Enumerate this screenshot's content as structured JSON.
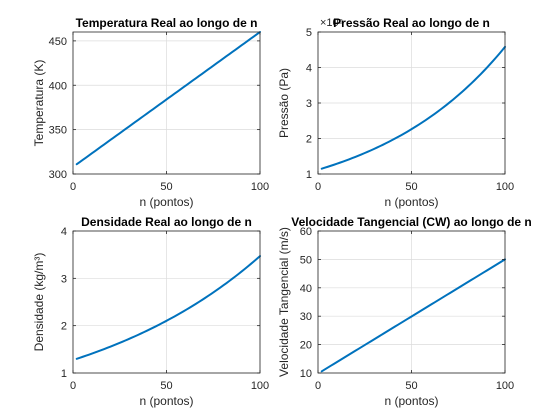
{
  "figure": {
    "background": "#ffffff",
    "line_color": "#0072bd"
  },
  "chart_data": [
    {
      "type": "line",
      "title": "Temperatura Real ao longo de n",
      "xlabel": "n (pontos)",
      "ylabel": "Temperatura (K)",
      "xlim": [
        0,
        100
      ],
      "ylim": [
        300,
        460
      ],
      "xticks": [
        0,
        50,
        100
      ],
      "yticks": [
        300,
        350,
        400,
        450
      ],
      "exponent_label": "",
      "grid": true,
      "curve": "linear",
      "x": [
        2,
        25,
        50,
        75,
        100
      ],
      "y": [
        311,
        347,
        385,
        423,
        460
      ]
    },
    {
      "type": "line",
      "title": "Pressão Real ao longo de n",
      "xlabel": "n (pontos)",
      "ylabel": "Pressão (Pa)",
      "xlim": [
        0,
        100
      ],
      "ylim": [
        1,
        5
      ],
      "xticks": [
        0,
        50,
        100
      ],
      "yticks": [
        1,
        2,
        3,
        4,
        5
      ],
      "exponent_label": "×10⁵",
      "grid": true,
      "curve": "exponential",
      "x": [
        2,
        25,
        50,
        75,
        100
      ],
      "y": [
        1.15,
        1.65,
        2.37,
        3.35,
        4.58
      ]
    },
    {
      "type": "line",
      "title": "Densidade Real ao longo de n",
      "xlabel": "n (pontos)",
      "ylabel": "Densidade (kg/m³)",
      "xlim": [
        0,
        100
      ],
      "ylim": [
        1,
        4
      ],
      "xticks": [
        0,
        50,
        100
      ],
      "yticks": [
        1,
        2,
        3,
        4
      ],
      "exponent_label": "",
      "grid": true,
      "curve": "exponential",
      "x": [
        2,
        25,
        50,
        75,
        100
      ],
      "y": [
        1.3,
        1.67,
        2.15,
        2.75,
        3.47
      ]
    },
    {
      "type": "line",
      "title": "Velocidade Tangencial (CW) ao longo de n",
      "xlabel": "n (pontos)",
      "ylabel": "Velocidade Tangencial (m/s)",
      "xlim": [
        0,
        100
      ],
      "ylim": [
        10,
        60
      ],
      "xticks": [
        0,
        50,
        100
      ],
      "yticks": [
        10,
        20,
        30,
        40,
        50,
        60
      ],
      "exponent_label": "",
      "grid": true,
      "curve": "linear",
      "x": [
        2,
        25,
        50,
        75,
        100
      ],
      "y": [
        10.6,
        20,
        30,
        40,
        50
      ]
    }
  ]
}
